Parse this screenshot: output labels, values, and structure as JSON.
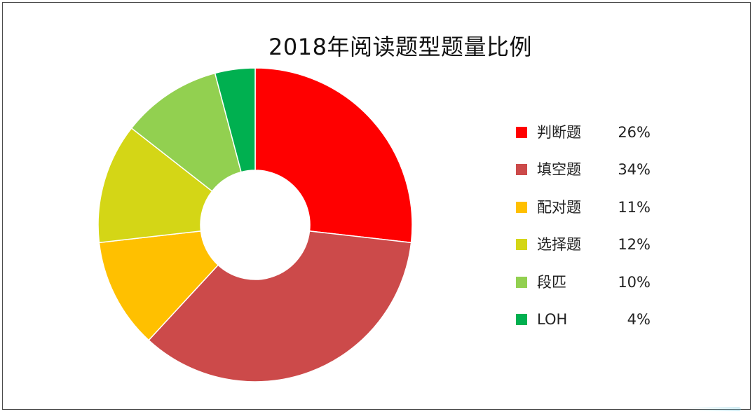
{
  "chart_data": {
    "type": "pie",
    "title": "2018年阅读题型题量比例",
    "categories": [
      "判断题",
      "填空题",
      "配对题",
      "选择题",
      "段匹",
      "LOH"
    ],
    "values": [
      26,
      34,
      11,
      12,
      10,
      4
    ],
    "value_labels": [
      "26%",
      "34%",
      "11%",
      "12%",
      "10%",
      "4%"
    ],
    "colors": [
      "#ff0000",
      "#cc4a4a",
      "#ffc000",
      "#d4d616",
      "#92d050",
      "#00b050"
    ],
    "legend_position": "right",
    "donut": true
  }
}
